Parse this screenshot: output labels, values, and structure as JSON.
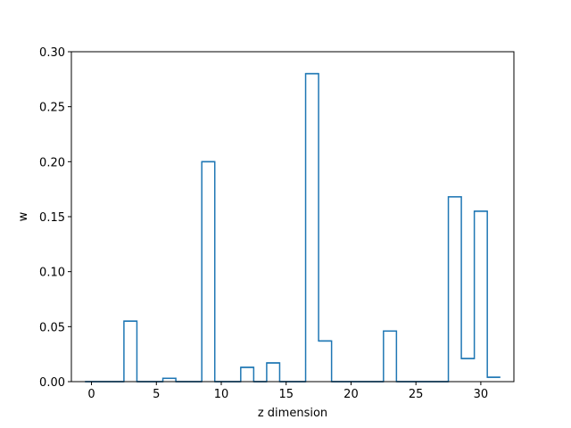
{
  "chart_data": {
    "type": "line",
    "style": "step-histogram",
    "title": "",
    "xlabel": "z dimension",
    "ylabel": "w",
    "xlim": [
      -1.55,
      32.55
    ],
    "ylim": [
      0.0,
      0.3
    ],
    "xticks": [
      0,
      5,
      10,
      15,
      20,
      25,
      30
    ],
    "xtick_labels": [
      "0",
      "5",
      "10",
      "15",
      "20",
      "25",
      "30"
    ],
    "yticks": [
      0.0,
      0.05,
      0.1,
      0.15,
      0.2,
      0.25,
      0.3
    ],
    "ytick_labels": [
      "0.00",
      "0.05",
      "0.10",
      "0.15",
      "0.20",
      "0.25",
      "0.30"
    ],
    "grid": false,
    "series": [
      {
        "color": "#1f77b4",
        "x": [
          0,
          1,
          2,
          3,
          4,
          5,
          6,
          7,
          8,
          9,
          10,
          11,
          12,
          13,
          14,
          15,
          16,
          17,
          18,
          19,
          20,
          21,
          22,
          23,
          24,
          25,
          26,
          27,
          28,
          29,
          30,
          31
        ],
        "values": [
          0.0,
          0.0,
          0.0,
          0.055,
          0.0,
          0.0,
          0.003,
          0.0,
          0.0,
          0.2,
          0.0,
          0.0,
          0.013,
          0.0,
          0.017,
          0.0,
          0.0,
          0.28,
          0.037,
          0.0,
          0.0,
          0.0,
          0.0,
          0.046,
          0.0,
          0.0,
          0.0,
          0.0,
          0.168,
          0.021,
          0.155,
          0.004
        ]
      }
    ]
  }
}
